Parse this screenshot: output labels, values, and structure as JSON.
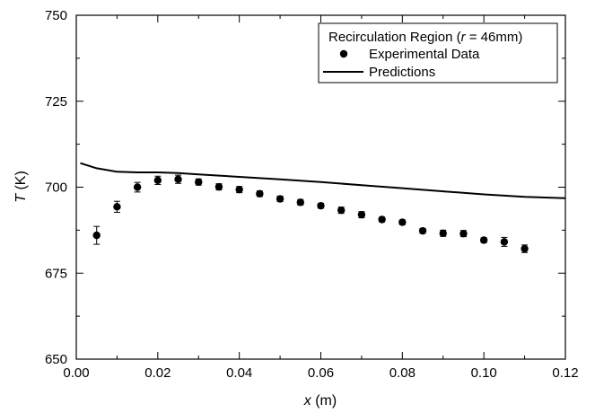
{
  "chart_data": {
    "type": "scatter",
    "title": "",
    "xlabel_var": "x",
    "xlabel_unit": " (m)",
    "ylabel_var": "T",
    "ylabel_unit": " (K)",
    "xlim": [
      0.0,
      0.12
    ],
    "ylim": [
      650,
      750
    ],
    "xticks": [
      0.0,
      0.02,
      0.04,
      0.06,
      0.08,
      0.1,
      0.12
    ],
    "xtick_labels": [
      "0.00",
      "0.02",
      "0.04",
      "0.06",
      "0.08",
      "0.10",
      "0.12"
    ],
    "yticks": [
      650,
      675,
      700,
      725,
      750
    ],
    "ytick_labels": [
      "650",
      "675",
      "700",
      "725",
      "750"
    ],
    "grid": false,
    "legend": {
      "position": "top-right",
      "title_prefix": "Recirculation Region (",
      "title_var": "r",
      "title_suffix": " = 46mm)"
    },
    "series": [
      {
        "name": "Experimental Data",
        "kind": "scatter",
        "color": "#000000",
        "x": [
          0.005,
          0.01,
          0.015,
          0.02,
          0.025,
          0.03,
          0.035,
          0.04,
          0.045,
          0.05,
          0.055,
          0.06,
          0.065,
          0.07,
          0.075,
          0.08,
          0.085,
          0.09,
          0.095,
          0.1,
          0.105,
          0.11
        ],
        "y": [
          686.0,
          694.3,
          700.0,
          702.0,
          702.3,
          701.5,
          700.1,
          699.3,
          698.1,
          696.6,
          695.6,
          694.6,
          693.3,
          692.0,
          690.6,
          689.8,
          687.3,
          686.6,
          686.5,
          684.6,
          684.1,
          682.1
        ],
        "err": [
          2.6,
          1.6,
          1.4,
          1.2,
          1.2,
          0.9,
          0.9,
          0.9,
          0.8,
          0.8,
          0.8,
          0.7,
          0.9,
          0.9,
          0.7,
          0.7,
          0.7,
          0.9,
          0.9,
          0.7,
          1.3,
          1.1
        ]
      },
      {
        "name": "Predictions",
        "kind": "line",
        "color": "#000000",
        "x": [
          0.001,
          0.005,
          0.01,
          0.015,
          0.02,
          0.025,
          0.03,
          0.04,
          0.05,
          0.06,
          0.07,
          0.08,
          0.09,
          0.1,
          0.11,
          0.12
        ],
        "y": [
          707.0,
          705.5,
          704.5,
          704.3,
          704.3,
          704.1,
          703.7,
          703.0,
          702.3,
          701.5,
          700.6,
          699.7,
          698.8,
          697.9,
          697.2,
          696.8
        ]
      }
    ]
  }
}
